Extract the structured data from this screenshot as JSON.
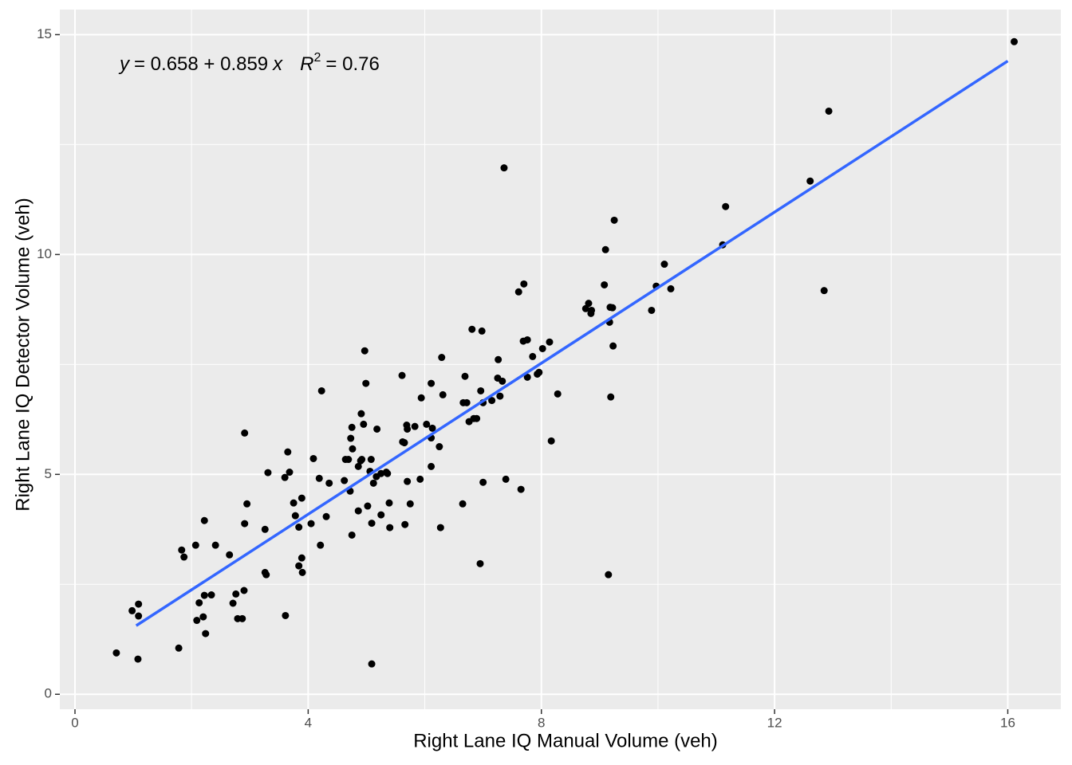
{
  "chart_data": {
    "type": "scatter",
    "x_label": "Right Lane IQ Manual Volume (veh)",
    "y_label": "Right Lane IQ Detector Volume (veh)",
    "annotation": [
      "y",
      "= 0.658 + 0.859",
      "x",
      "R",
      "2",
      "= 0.76"
    ],
    "xlim": [
      -0.26,
      16.91
    ],
    "ylim": [
      -0.34,
      15.57
    ],
    "xticks": [
      0,
      4,
      8,
      12,
      16
    ],
    "yticks": [
      0,
      5,
      10,
      15
    ],
    "xminor": [
      2,
      6,
      10,
      14
    ],
    "yminor": [
      2.5,
      7.5,
      12.5
    ],
    "grid": true,
    "points": {
      "color": "#000000",
      "x": [
        16.11,
        12.93,
        12.61,
        11.16,
        11.11,
        12.85,
        9.25,
        9.1,
        10.11,
        9.08,
        9.97,
        10.22,
        9.89,
        9.22,
        9.17,
        9.18,
        8.81,
        8.86,
        8.85,
        8.76,
        9.23,
        9.19,
        9.15,
        7.36,
        7.7,
        7.61,
        7.69,
        7.76,
        8.14,
        7.85,
        8.02,
        7.93,
        7.76,
        7.96,
        8.28,
        8.17,
        7.65,
        7.39,
        6.81,
        6.98,
        7.26,
        7.25,
        7.33,
        7.15,
        7.29,
        7.0,
        6.96,
        6.76,
        6.89,
        6.69,
        6.66,
        6.72,
        6.84,
        7.0,
        6.95,
        6.65,
        6.29,
        6.11,
        6.31,
        5.94,
        6.13,
        6.11,
        6.25,
        6.11,
        6.27,
        6.03,
        5.83,
        5.69,
        5.7,
        5.62,
        5.65,
        5.7,
        5.75,
        5.92,
        5.66,
        5.61,
        4.97,
        4.99,
        4.91,
        4.95,
        4.75,
        4.76,
        4.73,
        4.69,
        4.92,
        4.9,
        5.08,
        4.64,
        5.06,
        4.86,
        4.62,
        4.72,
        5.17,
        5.25,
        5.18,
        5.36,
        5.34,
        5.12,
        5.39,
        5.25,
        4.86,
        5.02,
        5.09,
        5.4,
        4.75,
        5.09,
        4.23,
        4.09,
        4.19,
        4.36,
        4.31,
        4.05,
        4.21,
        3.89,
        3.75,
        3.78,
        3.84,
        3.65,
        3.68,
        3.6,
        3.31,
        2.91,
        2.95,
        2.91,
        3.26,
        3.26,
        3.28,
        3.84,
        3.89,
        3.9,
        3.61,
        2.65,
        2.41,
        2.22,
        1.83,
        1.87,
        2.07,
        2.34,
        2.22,
        2.13,
        2.09,
        2.2,
        2.24,
        2.76,
        2.9,
        2.71,
        2.79,
        2.87,
        0.98,
        1.09,
        1.09,
        0.71,
        1.08,
        1.78
      ],
      "y": [
        14.84,
        13.26,
        11.67,
        11.09,
        10.22,
        9.18,
        10.78,
        10.11,
        9.78,
        9.31,
        9.28,
        9.22,
        8.73,
        8.79,
        8.46,
        8.8,
        8.89,
        8.73,
        8.66,
        8.77,
        7.92,
        6.76,
        2.72,
        11.97,
        9.33,
        9.15,
        8.03,
        8.06,
        8.01,
        7.68,
        7.86,
        7.28,
        7.21,
        7.32,
        6.83,
        5.76,
        4.66,
        4.89,
        8.3,
        8.26,
        7.61,
        7.19,
        7.12,
        6.68,
        6.78,
        6.63,
        6.9,
        6.2,
        6.27,
        7.23,
        6.63,
        6.63,
        6.27,
        4.82,
        2.97,
        4.33,
        7.66,
        7.07,
        6.81,
        6.74,
        6.05,
        5.83,
        5.63,
        5.18,
        3.79,
        6.14,
        6.09,
        6.12,
        6.03,
        5.74,
        5.72,
        4.84,
        4.33,
        4.89,
        3.86,
        7.25,
        7.81,
        7.07,
        6.38,
        6.14,
        6.07,
        5.58,
        5.82,
        5.34,
        5.34,
        5.31,
        5.34,
        5.34,
        5.07,
        5.18,
        4.86,
        4.62,
        4.95,
        5.02,
        6.03,
        5.02,
        5.05,
        4.8,
        4.35,
        4.08,
        4.17,
        4.28,
        3.89,
        3.79,
        3.62,
        0.69,
        6.9,
        5.36,
        4.91,
        4.8,
        4.04,
        3.88,
        3.39,
        4.46,
        4.35,
        4.06,
        3.8,
        5.51,
        5.05,
        4.93,
        5.04,
        5.94,
        4.33,
        3.88,
        3.75,
        2.77,
        2.72,
        2.92,
        3.1,
        2.77,
        1.79,
        3.17,
        3.39,
        3.95,
        3.28,
        3.12,
        3.39,
        2.26,
        2.25,
        2.08,
        1.68,
        1.76,
        1.38,
        2.28,
        2.36,
        2.07,
        1.72,
        1.72,
        1.9,
        2.05,
        1.78,
        0.94,
        0.8,
        1.05
      ]
    },
    "fit": {
      "color": "#3366ff",
      "x": [
        1.05,
        16.0
      ],
      "y": [
        1.56,
        14.4
      ]
    }
  }
}
